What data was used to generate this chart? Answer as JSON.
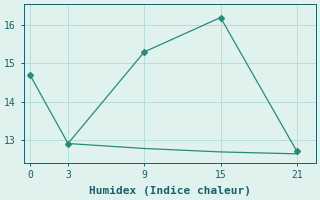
{
  "xlabel": "Humidex (Indice chaleur)",
  "line1_x": [
    0,
    3,
    9,
    15,
    21
  ],
  "line1_y": [
    14.7,
    12.9,
    15.3,
    16.2,
    12.7
  ],
  "line2_x": [
    3,
    9,
    15,
    21
  ],
  "line2_y": [
    12.9,
    12.77,
    12.68,
    12.63
  ],
  "line_color": "#2a8a7a",
  "marker": "D",
  "markersize": 3,
  "xlim": [
    -0.5,
    22.5
  ],
  "ylim": [
    12.4,
    16.55
  ],
  "xticks": [
    0,
    3,
    9,
    15,
    21
  ],
  "yticks": [
    13,
    14,
    15,
    16
  ],
  "bg_color": "#dff2ee",
  "grid_color": "#b8ddd8",
  "font_color": "#1a5f6a",
  "tick_fontsize": 7,
  "xlabel_fontsize": 8
}
